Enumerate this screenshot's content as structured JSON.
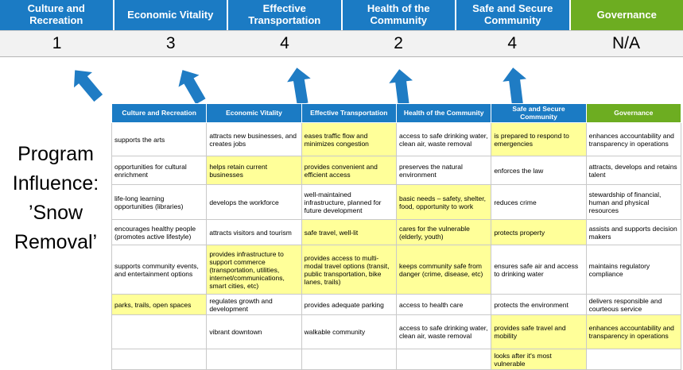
{
  "program_label": "Program Influence: ’Snow Removal’",
  "theme": {
    "blue": "#1B7BC4",
    "green": "#6DAD21",
    "highlight": "#FFFF99",
    "score_bg": "#F2F2F2",
    "arrow": "#1F7CC4"
  },
  "scoreboard": {
    "columns": [
      {
        "label": "Culture and Recreation",
        "score": "1",
        "color_key": "blue"
      },
      {
        "label": "Economic Vitality",
        "score": "3",
        "color_key": "blue"
      },
      {
        "label": "Effective Transportation",
        "score": "4",
        "color_key": "blue"
      },
      {
        "label": "Health of the Community",
        "score": "2",
        "color_key": "blue"
      },
      {
        "label": "Safe and Secure Community",
        "score": "4",
        "color_key": "blue"
      },
      {
        "label": "Governance",
        "score": "N/A",
        "color_key": "green"
      }
    ]
  },
  "matrix": {
    "headers": [
      {
        "label": "Culture and Recreation",
        "color_key": "blue"
      },
      {
        "label": "Economic Vitality",
        "color_key": "blue"
      },
      {
        "label": "Effective Transportation",
        "color_key": "blue"
      },
      {
        "label": "Health of the Community",
        "color_key": "blue"
      },
      {
        "label": "Safe and Secure Community",
        "color_key": "blue"
      },
      {
        "label": "Governance",
        "color_key": "green"
      }
    ],
    "rows": [
      [
        {
          "text": "supports the arts",
          "highlight": false
        },
        {
          "text": "attracts new businesses, and creates jobs",
          "highlight": false
        },
        {
          "text": "eases traffic flow and minimizes congestion",
          "highlight": true
        },
        {
          "text": "access to safe drinking water, clean air, waste removal",
          "highlight": false
        },
        {
          "text": "is prepared to respond to emergencies",
          "highlight": true
        },
        {
          "text": "enhances accountability and transparency in operations",
          "highlight": false
        }
      ],
      [
        {
          "text": "opportunities for cultural enrichment",
          "highlight": false
        },
        {
          "text": "helps retain current businesses",
          "highlight": true
        },
        {
          "text": "provides convenient and efficient access",
          "highlight": true
        },
        {
          "text": "preserves the natural environment",
          "highlight": false
        },
        {
          "text": "enforces the law",
          "highlight": false
        },
        {
          "text": "attracts, develops and retains talent",
          "highlight": false
        }
      ],
      [
        {
          "text": "life-long learning opportunities (libraries)",
          "highlight": false
        },
        {
          "text": "develops the workforce",
          "highlight": false
        },
        {
          "text": "well-maintained infrastructure, planned for future development",
          "highlight": false
        },
        {
          "text": "basic needs – safety, shelter, food, opportunity to work",
          "highlight": true
        },
        {
          "text": "reduces crime",
          "highlight": false
        },
        {
          "text": "stewardship of financial, human and physical resources",
          "highlight": false
        }
      ],
      [
        {
          "text": "encourages healthy people (promotes active lifestyle)",
          "highlight": false
        },
        {
          "text": "attracts visitors and tourism",
          "highlight": false
        },
        {
          "text": "safe travel, well-lit",
          "highlight": true
        },
        {
          "text": "cares for the vulnerable (elderly, youth)",
          "highlight": true
        },
        {
          "text": "protects property",
          "highlight": true
        },
        {
          "text": "assists and supports decision makers",
          "highlight": false
        }
      ],
      [
        {
          "text": "supports community events, and entertainment options",
          "highlight": false
        },
        {
          "text": "provides infrastructure to support commerce (transportation, utilities, internet/communications, smart cities, etc)",
          "highlight": true
        },
        {
          "text": "provides access to multi-modal travel options (transit, public transportation, bike lanes, trails)",
          "highlight": true
        },
        {
          "text": "keeps community safe from danger (crime, disease, etc)",
          "highlight": true
        },
        {
          "text": "ensures safe air and access to drinking water",
          "highlight": false
        },
        {
          "text": "maintains regulatory compliance",
          "highlight": false
        }
      ],
      [
        {
          "text": "parks, trails, open spaces",
          "highlight": true
        },
        {
          "text": "regulates growth and development",
          "highlight": false
        },
        {
          "text": "provides adequate parking",
          "highlight": false
        },
        {
          "text": "access to health care",
          "highlight": false
        },
        {
          "text": "protects the environment",
          "highlight": false
        },
        {
          "text": "delivers responsible and courteous service",
          "highlight": false
        }
      ],
      [
        {
          "text": "",
          "highlight": false
        },
        {
          "text": "vibrant downtown",
          "highlight": false
        },
        {
          "text": "walkable community",
          "highlight": false
        },
        {
          "text": "access to safe drinking water, clean air, waste removal",
          "highlight": false
        },
        {
          "text": "provides safe travel and mobility",
          "highlight": true
        },
        {
          "text": "enhances accountability and transparency in operations",
          "highlight": true
        }
      ],
      [
        {
          "text": "",
          "highlight": false
        },
        {
          "text": "",
          "highlight": false
        },
        {
          "text": "",
          "highlight": false
        },
        {
          "text": "",
          "highlight": false
        },
        {
          "text": "looks after it's most vulnerable",
          "highlight": true
        },
        {
          "text": "",
          "highlight": false
        }
      ]
    ]
  }
}
